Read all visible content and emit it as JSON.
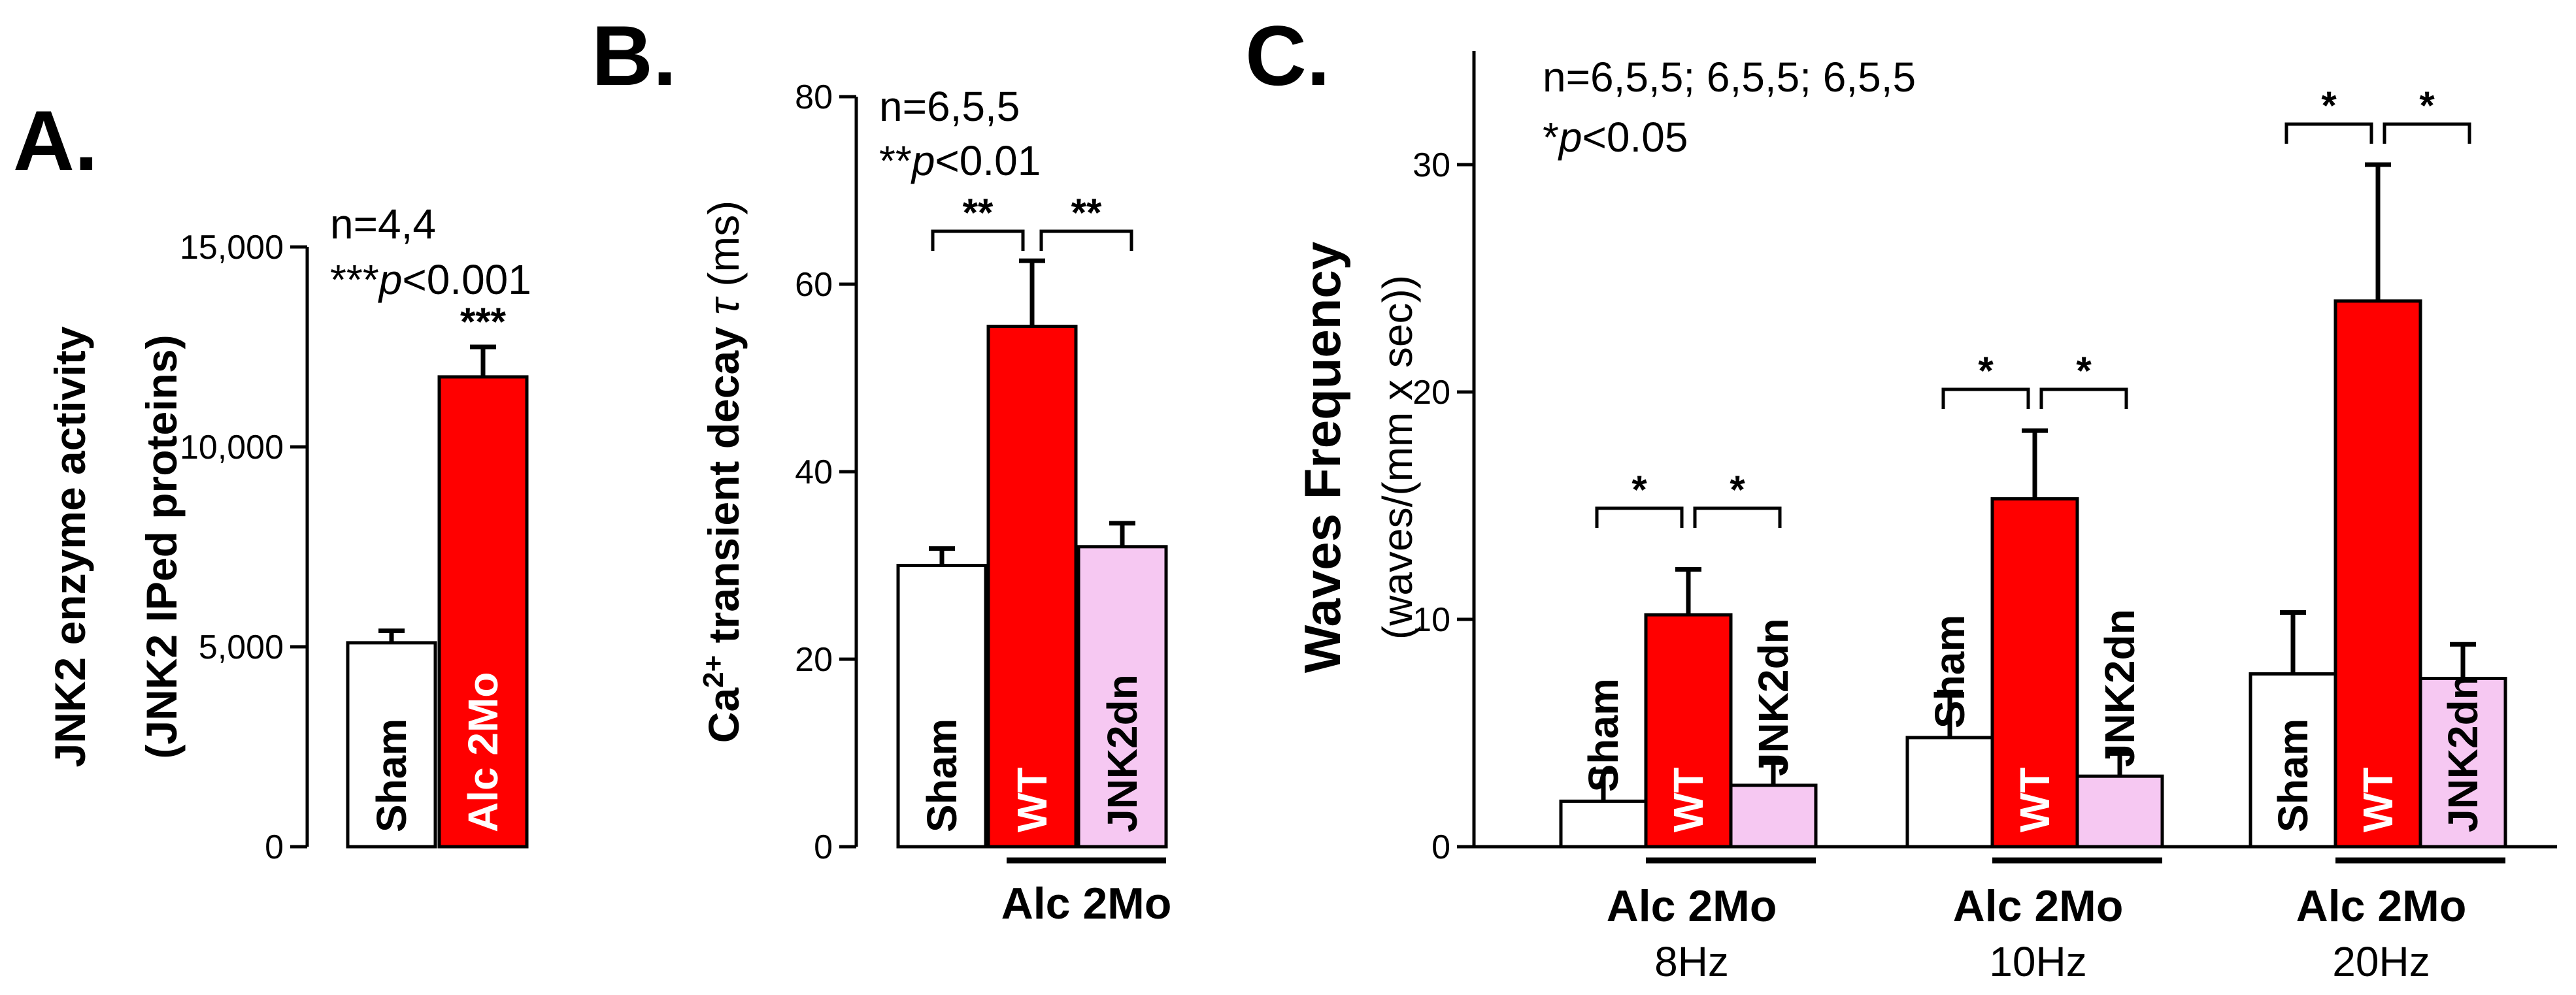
{
  "chart_data": [
    {
      "panel": "A.",
      "type": "bar",
      "ylabel_line1": "JNK2 enzyme activity",
      "ylabel_line2": "(JNK2 IPed proteins)",
      "ylim": [
        0,
        15000
      ],
      "yticks": [
        "0",
        "5,000",
        "10,000",
        "15,000"
      ],
      "ytick_values": [
        0,
        5000,
        10000,
        15000
      ],
      "annotation_n": "n=4,4",
      "annotation_p": {
        "stars": "***",
        "p": "p",
        "rest": "<0.001"
      },
      "bars": [
        {
          "label": "Sham",
          "value": 5100,
          "error": 300,
          "color": "#ffffff",
          "label_color": "#000000"
        },
        {
          "label": "Alc 2Mo",
          "value": 11750,
          "error": 750,
          "color": "#ff0000",
          "label_color": "#ffffff",
          "star": "***"
        }
      ]
    },
    {
      "panel": "B.",
      "type": "bar",
      "ylabel_prefix": "Ca",
      "ylabel_sup": "2+",
      "ylabel_text": " transient decay ",
      "ylabel_symbol": "τ",
      "ylabel_unit": " (ms)",
      "ylim": [
        0,
        80
      ],
      "yticks": [
        "0",
        "20",
        "40",
        "60",
        "80"
      ],
      "ytick_values": [
        0,
        20,
        40,
        60,
        80
      ],
      "annotation_n": "n=6,5,5",
      "annotation_p": {
        "stars": "**",
        "p": "p",
        "rest": "<0.01"
      },
      "bars": [
        {
          "label": "Sham",
          "value": 30,
          "error": 1.8,
          "color": "#ffffff",
          "label_color": "#000000"
        },
        {
          "label": "WT",
          "value": 55.5,
          "error": 7,
          "color": "#ff0000",
          "label_color": "#ffffff"
        },
        {
          "label": "JNK2dn",
          "value": 32,
          "error": 2.5,
          "color": "#f6c8f2",
          "label_color": "#000000"
        }
      ],
      "brackets": [
        {
          "from": 0,
          "to": 1,
          "text": "**"
        },
        {
          "from": 1,
          "to": 2,
          "text": "**"
        }
      ],
      "group_label": "Alc 2Mo"
    },
    {
      "panel": "C.",
      "type": "bar",
      "ylabel_line1": "Waves Frequency",
      "ylabel_line2": "(waves/(mm x sec))",
      "ylim": [
        0,
        35
      ],
      "yticks": [
        "0",
        "10",
        "20",
        "30"
      ],
      "ytick_values": [
        0,
        10,
        20,
        30
      ],
      "annotation_n": "n=6,5,5; 6,5,5; 6,5,5",
      "annotation_p": {
        "stars": "*",
        "p": "p",
        "rest": "<0.05"
      },
      "groups": [
        {
          "frequency": "8Hz",
          "group_label": "Alc 2Mo",
          "bars": [
            {
              "label": "Sham",
              "value": 2.0,
              "error": 1.3,
              "color": "#ffffff"
            },
            {
              "label": "WT",
              "value": 10.2,
              "error": 2.0,
              "color": "#ff0000"
            },
            {
              "label": "JNK2dn",
              "value": 2.7,
              "error": 1.0,
              "color": "#f6c8f2"
            }
          ],
          "brackets": [
            {
              "from": 0,
              "to": 1,
              "text": "*"
            },
            {
              "from": 1,
              "to": 2,
              "text": "*"
            }
          ]
        },
        {
          "frequency": "10Hz",
          "group_label": "Alc 2Mo",
          "bars": [
            {
              "label": "Sham",
              "value": 4.8,
              "error": 2.0,
              "color": "#ffffff"
            },
            {
              "label": "WT",
              "value": 15.3,
              "error": 3.0,
              "color": "#ff0000"
            },
            {
              "label": "JNK2dn",
              "value": 3.1,
              "error": 1.0,
              "color": "#f6c8f2"
            }
          ],
          "brackets": [
            {
              "from": 0,
              "to": 1,
              "text": "*"
            },
            {
              "from": 1,
              "to": 2,
              "text": "*"
            }
          ]
        },
        {
          "frequency": "20Hz",
          "group_label": "Alc 2Mo",
          "bars": [
            {
              "label": "Sham",
              "value": 7.6,
              "error": 2.7,
              "color": "#ffffff"
            },
            {
              "label": "WT",
              "value": 24.0,
              "error": 6.0,
              "color": "#ff0000"
            },
            {
              "label": "JNK2dn",
              "value": 7.4,
              "error": 1.5,
              "color": "#f6c8f2"
            }
          ],
          "brackets": [
            {
              "from": 0,
              "to": 1,
              "text": "*"
            },
            {
              "from": 1,
              "to": 2,
              "text": "*"
            }
          ]
        }
      ]
    }
  ]
}
